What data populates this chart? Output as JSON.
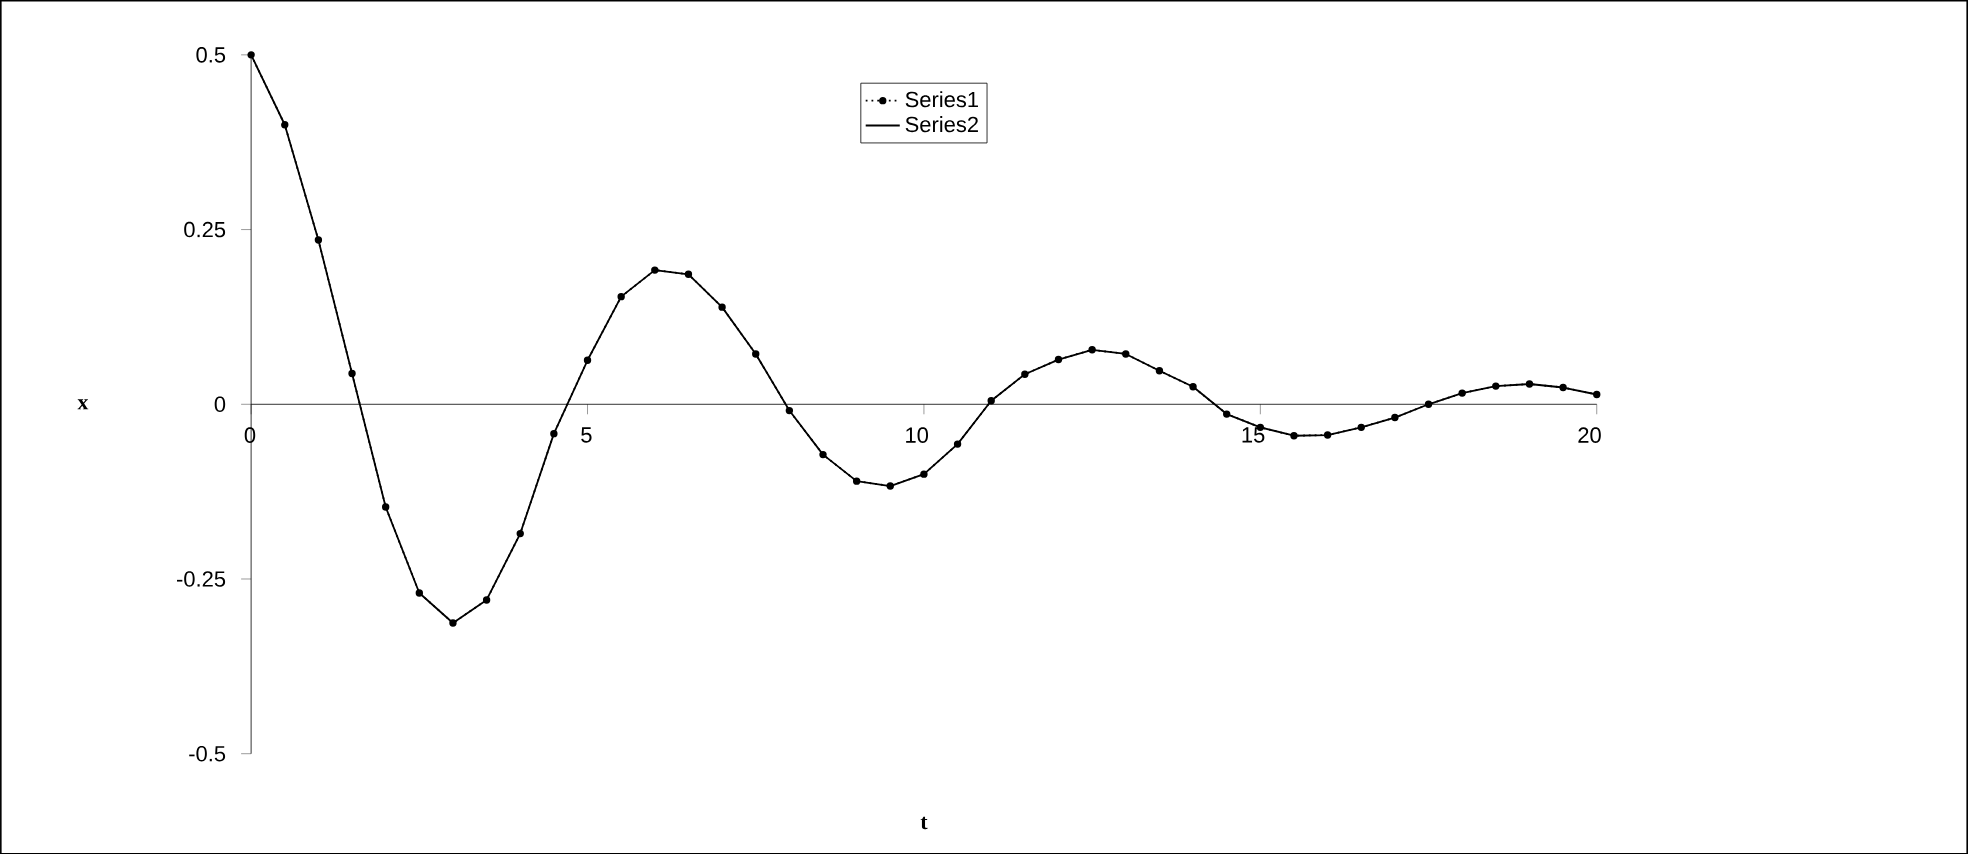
{
  "chart_data": {
    "type": "line",
    "xlabel": "t",
    "ylabel": "x",
    "x": [
      0,
      0.5,
      1,
      1.5,
      2,
      2.5,
      3,
      3.5,
      4,
      4.5,
      5,
      5.5,
      6,
      6.5,
      7,
      7.5,
      8,
      8.5,
      9,
      9.5,
      10,
      10.5,
      11,
      11.5,
      12,
      12.5,
      13,
      13.5,
      14,
      14.5,
      15,
      15.5,
      16,
      16.5,
      17,
      17.5,
      18,
      18.5,
      19,
      19.5,
      20
    ],
    "series": [
      {
        "name": "Series1",
        "color": "#000000",
        "marker": "circle",
        "line_style": "dotted",
        "values": [
          0.5,
          0.4,
          0.235,
          0.044,
          -0.147,
          -0.27,
          -0.313,
          -0.28,
          -0.185,
          -0.042,
          0.063,
          0.154,
          0.192,
          0.186,
          0.139,
          0.072,
          -0.009,
          -0.072,
          -0.11,
          -0.117,
          -0.1,
          -0.057,
          0.005,
          0.043,
          0.064,
          0.078,
          0.072,
          0.048,
          0.025,
          -0.014,
          -0.033,
          -0.045,
          -0.044,
          -0.033,
          -0.019,
          0,
          0.016,
          0.026,
          0.029,
          0.024,
          0.014
        ]
      },
      {
        "name": "Series2",
        "color": "#000000",
        "marker": "none",
        "line_style": "solid",
        "values": [
          0.5,
          0.4,
          0.235,
          0.044,
          -0.147,
          -0.27,
          -0.313,
          -0.28,
          -0.185,
          -0.042,
          0.063,
          0.154,
          0.192,
          0.186,
          0.139,
          0.072,
          -0.009,
          -0.072,
          -0.11,
          -0.117,
          -0.1,
          -0.057,
          0.005,
          0.043,
          0.064,
          0.078,
          0.072,
          0.048,
          0.025,
          -0.014,
          -0.033,
          -0.045,
          -0.044,
          -0.033,
          -0.019,
          0,
          0.016,
          0.026,
          0.029,
          0.024,
          0.014
        ]
      }
    ],
    "xlim": [
      0,
      20
    ],
    "xticks": [
      0,
      5,
      10,
      15,
      20
    ],
    "ylim": [
      -0.5,
      0.5
    ],
    "yticks": [
      -0.5,
      -0.25,
      0,
      0.25,
      0.5
    ],
    "legend": "top"
  }
}
